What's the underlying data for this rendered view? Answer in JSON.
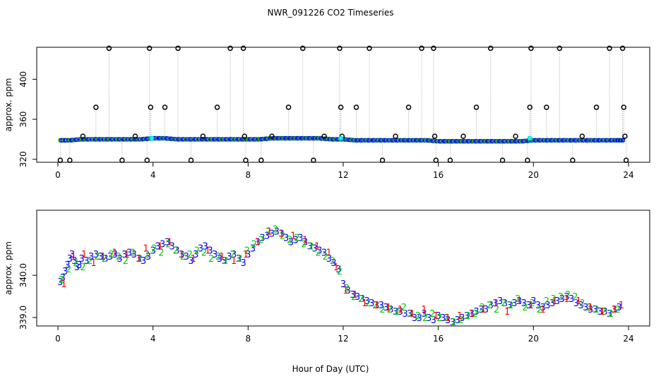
{
  "title": "NWR_091226  CO2 Timeseries",
  "xlabel": "Hour of Day (UTC)",
  "chart_data": [
    {
      "type": "scatter",
      "ylabel": "approx. ppm",
      "xlim": [
        0,
        24
      ],
      "ylim": [
        317,
        432
      ],
      "xticks": [
        0,
        4,
        8,
        12,
        16,
        20,
        24
      ],
      "yticks": [
        320,
        360,
        400
      ],
      "ytick_labels": [
        "320",
        "360",
        "400"
      ],
      "series": [
        {
          "color": "#0000ff",
          "note_marker": "dense small points",
          "x": [
            0.1,
            0.5,
            1.0,
            1.5,
            2.0,
            2.5,
            3.0,
            3.5,
            4.0,
            4.5,
            5.0,
            5.5,
            6.0,
            6.5,
            7.0,
            7.5,
            8.0,
            8.5,
            9.0,
            9.5,
            10.0,
            10.5,
            11.0,
            11.5,
            12.0,
            12.5,
            13.0,
            13.5,
            14.0,
            14.5,
            15.0,
            15.5,
            16.0,
            16.5,
            17.0,
            17.5,
            18.0,
            18.5,
            19.0,
            19.5,
            20.0,
            20.5,
            21.0,
            21.5,
            22.0,
            22.5,
            23.0,
            23.5,
            23.8
          ],
          "y": [
            339,
            339,
            340,
            340,
            340,
            340,
            340,
            340,
            341,
            341,
            340,
            340,
            340,
            340,
            340,
            340,
            340,
            340,
            341,
            341,
            341,
            341,
            341,
            340,
            340,
            339,
            339,
            339,
            339,
            339,
            339,
            339,
            338,
            338,
            338,
            338,
            338,
            338,
            338,
            338,
            339,
            339,
            339,
            339,
            339,
            339,
            339,
            339,
            339
          ]
        },
        {
          "color": "#000000",
          "note_marker": "open circles with dotted drop lines",
          "x": [
            0.1,
            0.5,
            1.05,
            1.6,
            2.15,
            2.7,
            3.25,
            3.75,
            3.9,
            3.85,
            4.5,
            5.05,
            5.6,
            6.1,
            6.7,
            7.25,
            7.8,
            7.85,
            7.9,
            8.55,
            9.0,
            9.7,
            10.3,
            10.75,
            11.2,
            11.85,
            11.9,
            11.95,
            12.55,
            13.1,
            13.65,
            14.2,
            14.75,
            15.3,
            15.8,
            15.85,
            15.9,
            16.5,
            17.05,
            17.6,
            18.2,
            18.7,
            19.25,
            19.75,
            19.85,
            19.9,
            20.55,
            21.1,
            21.65,
            22.05,
            22.65,
            23.2,
            23.75,
            23.8,
            23.85,
            23.9
          ],
          "y": [
            319,
            319,
            343,
            372,
            431,
            319,
            343,
            319,
            372,
            431,
            372,
            431,
            319,
            343,
            372,
            431,
            431,
            343,
            319,
            319,
            343,
            372,
            431,
            319,
            343,
            431,
            372,
            343,
            372,
            431,
            319,
            343,
            372,
            431,
            431,
            343,
            319,
            319,
            343,
            372,
            431,
            319,
            343,
            319,
            372,
            431,
            372,
            431,
            319,
            343,
            372,
            431,
            431,
            372,
            343,
            319
          ]
        },
        {
          "color": "#00ffff",
          "note_marker": "small highlight points",
          "x": [
            3.95,
            11.9,
            19.85
          ],
          "y": [
            341,
            341,
            341
          ]
        }
      ]
    },
    {
      "type": "scatter",
      "ylabel": "approx. ppm",
      "xlim": [
        0,
        24
      ],
      "ylim": [
        338.8,
        341.54
      ],
      "xticks": [
        0,
        4,
        8,
        12,
        16,
        20,
        24
      ],
      "yticks": [
        339.0,
        340.0
      ],
      "ytick_labels": [
        "339.0",
        "340.0"
      ],
      "series": [
        {
          "color": "#0000ff",
          "marker": "3",
          "x": [
            0.1,
            0.2,
            0.3,
            0.4,
            0.5,
            0.6,
            0.7,
            0.8,
            0.9,
            1.0,
            1.2,
            1.4,
            1.6,
            1.8,
            2.0,
            2.2,
            2.4,
            2.6,
            2.8,
            3.0,
            3.2,
            3.4,
            3.6,
            3.8,
            4.0,
            4.2,
            4.4,
            4.6,
            4.8,
            5.0,
            5.2,
            5.4,
            5.6,
            5.8,
            6.0,
            6.2,
            6.4,
            6.6,
            6.8,
            7.0,
            7.2,
            7.4,
            7.6,
            7.8,
            8.0,
            8.2,
            8.4,
            8.6,
            8.8,
            9.0,
            9.2,
            9.4,
            9.6,
            9.8,
            10.0,
            10.2,
            10.4,
            10.6,
            10.8,
            11.0,
            11.2,
            11.4,
            11.6,
            11.8,
            12.0,
            12.2,
            12.4,
            12.6,
            12.8,
            13.0,
            13.2,
            13.4,
            13.6,
            13.8,
            14.0,
            14.2,
            14.4,
            14.6,
            14.8,
            15.0,
            15.2,
            15.4,
            15.6,
            15.8,
            16.0,
            16.2,
            16.4,
            16.6,
            16.8,
            17.0,
            17.2,
            17.4,
            17.6,
            17.8,
            18.0,
            18.2,
            18.4,
            18.6,
            18.8,
            19.0,
            19.2,
            19.4,
            19.6,
            19.8,
            20.0,
            20.2,
            20.4,
            20.6,
            20.8,
            21.0,
            21.2,
            21.4,
            21.6,
            21.8,
            22.0,
            22.2,
            22.4,
            22.6,
            22.8,
            23.0,
            23.2,
            23.4,
            23.6
          ],
          "y": [
            339.85,
            339.95,
            340.1,
            340.25,
            340.4,
            340.5,
            340.35,
            340.2,
            340.25,
            340.4,
            340.35,
            340.45,
            340.5,
            340.45,
            340.4,
            340.45,
            340.5,
            340.4,
            340.5,
            340.55,
            340.5,
            340.4,
            340.35,
            340.45,
            340.6,
            340.7,
            340.75,
            340.8,
            340.7,
            340.6,
            340.5,
            340.45,
            340.35,
            340.5,
            340.65,
            340.7,
            340.6,
            340.5,
            340.4,
            340.35,
            340.45,
            340.5,
            340.4,
            340.3,
            340.5,
            340.65,
            340.8,
            340.9,
            340.95,
            341.0,
            341.05,
            341.0,
            340.9,
            340.8,
            340.85,
            340.9,
            340.8,
            340.7,
            340.65,
            340.6,
            340.55,
            340.4,
            340.3,
            340.15,
            339.8,
            339.65,
            339.55,
            339.5,
            339.45,
            339.4,
            339.35,
            339.3,
            339.3,
            339.25,
            339.2,
            339.15,
            339.15,
            339.1,
            339.1,
            339.0,
            339.0,
            339.1,
            339.0,
            338.95,
            339.05,
            339.0,
            338.95,
            338.9,
            338.95,
            339.0,
            339.05,
            339.1,
            339.15,
            339.2,
            339.2,
            339.3,
            339.35,
            339.4,
            339.35,
            339.3,
            339.35,
            339.4,
            339.35,
            339.3,
            339.4,
            339.3,
            339.25,
            339.3,
            339.35,
            339.4,
            339.45,
            339.5,
            339.45,
            339.35,
            339.3,
            339.25,
            339.2,
            339.2,
            339.15,
            339.15,
            339.1,
            339.2,
            339.25
          ],
          "line_hint": "plotted as small digit glyphs"
        },
        {
          "color": "#00cc00",
          "marker": "2",
          "x": [
            0.15,
            0.45,
            0.75,
            1.05,
            1.35,
            1.65,
            1.95,
            2.25,
            2.55,
            2.85,
            3.15,
            3.45,
            3.75,
            4.05,
            4.35,
            4.65,
            4.95,
            5.25,
            5.55,
            5.85,
            6.15,
            6.45,
            6.75,
            7.05,
            7.35,
            7.65,
            7.95,
            8.25,
            8.55,
            8.85,
            9.15,
            9.45,
            9.75,
            10.05,
            10.35,
            10.65,
            10.95,
            11.25,
            11.55,
            11.85,
            12.15,
            12.45,
            12.75,
            13.05,
            13.35,
            13.65,
            13.95,
            14.25,
            14.55,
            14.85,
            15.15,
            15.45,
            15.75,
            16.05,
            16.35,
            16.65,
            16.95,
            17.25,
            17.55,
            17.85,
            18.15,
            18.45,
            18.75,
            19.05,
            19.35,
            19.65,
            19.95,
            20.25,
            20.55,
            20.85,
            21.15,
            21.45,
            21.75,
            22.05,
            22.35,
            22.65,
            22.95,
            23.25,
            23.55
          ],
          "y": [
            339.9,
            340.15,
            340.3,
            340.2,
            340.35,
            340.45,
            340.4,
            340.5,
            340.45,
            340.35,
            340.55,
            340.4,
            340.5,
            340.65,
            340.55,
            340.75,
            340.6,
            340.45,
            340.5,
            340.6,
            340.55,
            340.4,
            340.45,
            340.35,
            340.5,
            340.4,
            340.6,
            340.75,
            340.85,
            341.05,
            341.1,
            340.95,
            340.85,
            340.9,
            340.75,
            340.7,
            340.55,
            340.45,
            340.35,
            340.1,
            339.7,
            339.5,
            339.45,
            339.35,
            339.3,
            339.2,
            339.2,
            339.15,
            339.25,
            339.1,
            339.05,
            339.0,
            339.1,
            339.0,
            339.0,
            338.9,
            338.95,
            339.05,
            339.1,
            339.25,
            339.3,
            339.2,
            339.35,
            339.3,
            339.45,
            339.25,
            339.35,
            339.2,
            339.4,
            339.45,
            339.5,
            339.55,
            339.5,
            339.35,
            339.25,
            339.2,
            339.15,
            339.1,
            339.2
          ]
        },
        {
          "color": "#ff0000",
          "marker": "1",
          "x": [
            0.25,
            0.65,
            1.1,
            1.5,
            1.9,
            2.4,
            2.9,
            3.4,
            3.7,
            4.3,
            4.7,
            5.2,
            5.7,
            6.3,
            6.9,
            7.4,
            7.9,
            8.4,
            8.9,
            9.4,
            9.9,
            10.4,
            10.9,
            11.4,
            11.7,
            12.1,
            12.5,
            12.9,
            13.4,
            13.9,
            14.4,
            14.9,
            15.4,
            15.9,
            16.4,
            16.9,
            17.4,
            17.9,
            18.4,
            18.9,
            19.4,
            19.9,
            20.4,
            20.9,
            21.4,
            21.9,
            22.4,
            22.9,
            23.4,
            23.7
          ],
          "y": [
            339.8,
            340.45,
            340.5,
            340.3,
            340.45,
            340.55,
            340.5,
            340.4,
            340.65,
            340.7,
            340.8,
            340.5,
            340.4,
            340.6,
            340.45,
            340.35,
            340.5,
            340.8,
            341.05,
            341.0,
            340.95,
            340.85,
            340.7,
            340.55,
            340.2,
            339.65,
            339.55,
            339.35,
            339.3,
            339.25,
            339.2,
            339.1,
            339.2,
            339.05,
            339.0,
            339.05,
            339.1,
            339.2,
            339.35,
            339.15,
            339.4,
            339.3,
            339.2,
            339.4,
            339.45,
            339.4,
            339.25,
            339.15,
            339.2,
            339.3
          ]
        }
      ]
    }
  ]
}
